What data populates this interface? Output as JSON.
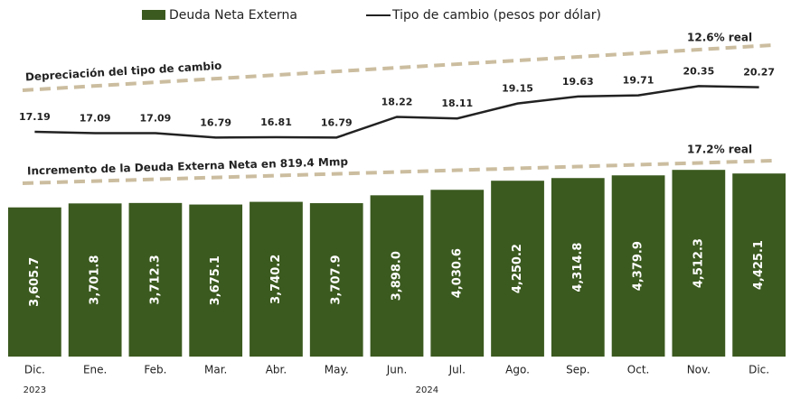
{
  "chart_data": {
    "type": "bar",
    "categories": [
      "Dic.",
      "Ene.",
      "Feb.",
      "Mar.",
      "Abr.",
      "May.",
      "Jun.",
      "Jul.",
      "Ago.",
      "Sep.",
      "Oct.",
      "Nov.",
      "Dic."
    ],
    "years": [
      "2023",
      "2024"
    ],
    "series": [
      {
        "name": "Deuda Neta Externa",
        "type": "bar",
        "color": "#3b5a1f",
        "values": [
          3605.7,
          3701.8,
          3712.3,
          3675.1,
          3740.2,
          3707.9,
          3898.0,
          4030.6,
          4250.2,
          4314.8,
          4379.9,
          4512.3,
          4425.1
        ],
        "value_labels": [
          "3,605.7",
          "3,701.8",
          "3,712.3",
          "3,675.1",
          "3,740.2",
          "3,707.9",
          "3,898.0",
          "4,030.6",
          "4,250.2",
          "4,314.8",
          "4,379.9",
          "4,512.3",
          "4,425.1"
        ]
      },
      {
        "name": "Tipo de cambio (pesos por dólar)",
        "type": "line",
        "axis": "y2",
        "color": "#222222",
        "values": [
          17.19,
          17.09,
          17.09,
          16.79,
          16.81,
          16.79,
          18.22,
          18.11,
          19.15,
          19.63,
          19.71,
          20.35,
          20.27
        ]
      }
    ],
    "ylim": [
      0,
      4800
    ],
    "y2lim": [
      16,
      21
    ],
    "annotations": [
      "Depreciación del tipo de cambio",
      "12.6% real",
      "Incremento de la Deuda Externa Neta en 819.4 Mmp",
      "17.2% real"
    ]
  }
}
